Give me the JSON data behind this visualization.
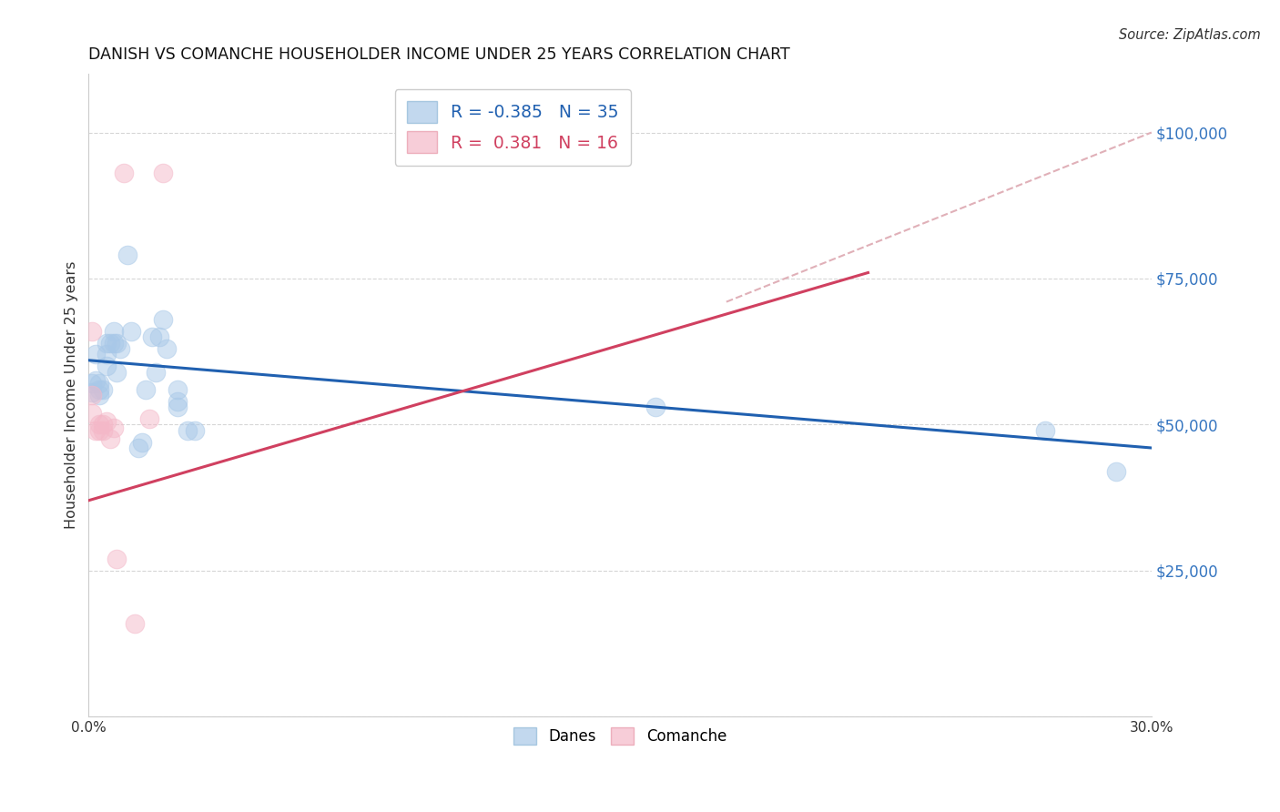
{
  "title": "DANISH VS COMANCHE HOUSEHOLDER INCOME UNDER 25 YEARS CORRELATION CHART",
  "source": "Source: ZipAtlas.com",
  "ylabel": "Householder Income Under 25 years",
  "xlim": [
    0.0,
    0.3
  ],
  "ylim": [
    0,
    110000
  ],
  "danes_color": "#a8c8e8",
  "comanche_color": "#f4b8c8",
  "danes_line_color": "#2060b0",
  "comanche_line_color": "#d04060",
  "dashed_line_color": "#e0b0b8",
  "background_color": "#ffffff",
  "grid_color": "#cccccc",
  "danes_points": [
    [
      0.001,
      57000
    ],
    [
      0.001,
      55500
    ],
    [
      0.002,
      57500
    ],
    [
      0.002,
      62000
    ],
    [
      0.003,
      57000
    ],
    [
      0.003,
      56000
    ],
    [
      0.003,
      55000
    ],
    [
      0.004,
      56000
    ],
    [
      0.005,
      64000
    ],
    [
      0.005,
      62000
    ],
    [
      0.005,
      60000
    ],
    [
      0.006,
      64000
    ],
    [
      0.007,
      66000
    ],
    [
      0.007,
      64000
    ],
    [
      0.008,
      64000
    ],
    [
      0.008,
      59000
    ],
    [
      0.009,
      63000
    ],
    [
      0.011,
      79000
    ],
    [
      0.012,
      66000
    ],
    [
      0.014,
      46000
    ],
    [
      0.015,
      47000
    ],
    [
      0.016,
      56000
    ],
    [
      0.018,
      65000
    ],
    [
      0.019,
      59000
    ],
    [
      0.02,
      65000
    ],
    [
      0.021,
      68000
    ],
    [
      0.022,
      63000
    ],
    [
      0.025,
      56000
    ],
    [
      0.025,
      54000
    ],
    [
      0.025,
      53000
    ],
    [
      0.028,
      49000
    ],
    [
      0.03,
      49000
    ],
    [
      0.16,
      53000
    ],
    [
      0.27,
      49000
    ],
    [
      0.29,
      42000
    ]
  ],
  "comanche_points": [
    [
      0.001,
      66000
    ],
    [
      0.001,
      55000
    ],
    [
      0.001,
      52000
    ],
    [
      0.002,
      49000
    ],
    [
      0.003,
      50000
    ],
    [
      0.003,
      49000
    ],
    [
      0.004,
      50000
    ],
    [
      0.004,
      49000
    ],
    [
      0.005,
      50500
    ],
    [
      0.006,
      47500
    ],
    [
      0.007,
      49500
    ],
    [
      0.008,
      27000
    ],
    [
      0.01,
      93000
    ],
    [
      0.013,
      16000
    ],
    [
      0.017,
      51000
    ],
    [
      0.021,
      93000
    ]
  ],
  "danes_line": {
    "x0": 0.0,
    "y0": 61000,
    "x1": 0.3,
    "y1": 46000
  },
  "comanche_line": {
    "x0": 0.0,
    "y0": 37000,
    "x1": 0.22,
    "y1": 76000
  },
  "dashed_line": {
    "x0": 0.18,
    "y0": 71000,
    "x1": 0.3,
    "y1": 100000
  }
}
